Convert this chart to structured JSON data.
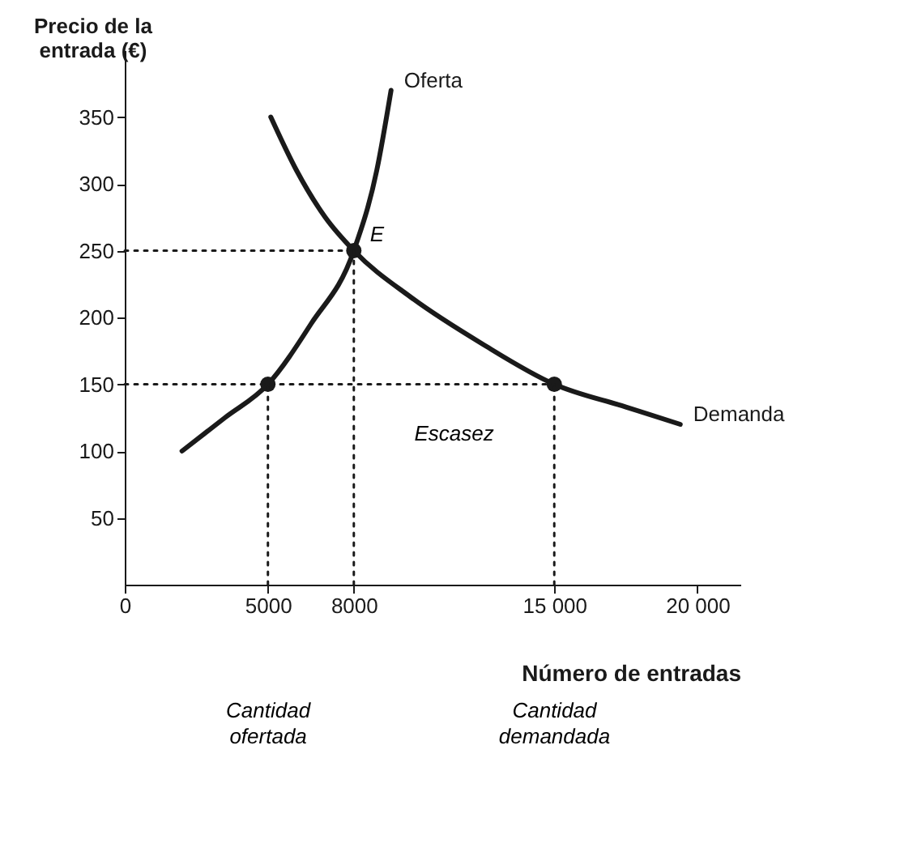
{
  "chart_data": {
    "type": "line",
    "ylabel": "Precio de la entrada (€)",
    "xlabel": "Número de entradas",
    "xlim": [
      0,
      21500
    ],
    "ylim": [
      0,
      400
    ],
    "xticks": [
      0,
      {
        "value": 5000,
        "label": "5000"
      },
      {
        "value": 8000,
        "label": "8000"
      },
      {
        "value": 15000,
        "label": "15 000"
      },
      {
        "value": 20000,
        "label": "20 000"
      }
    ],
    "yticks": [
      50,
      100,
      150,
      200,
      250,
      300,
      350
    ],
    "grid": false,
    "series": [
      {
        "name": "Oferta",
        "color": "#1a1a1a",
        "line_style": "solid",
        "x": [
          2000,
          3500,
          5000,
          6500,
          8000,
          8800,
          9300
        ],
        "values": [
          100,
          125,
          150,
          195,
          250,
          310,
          370
        ]
      },
      {
        "name": "Demanda",
        "color": "#1a1a1a",
        "line_style": "solid",
        "x": [
          5100,
          6000,
          7000,
          8000,
          10000,
          12500,
          15000,
          17500,
          19400
        ],
        "values": [
          350,
          310,
          275,
          250,
          215,
          180,
          150,
          133,
          120
        ]
      },
      {
        "type": "scatter",
        "marker": "circle",
        "color": "#1a1a1a",
        "x": [
          5000,
          8000,
          15000
        ],
        "values": [
          150,
          250,
          150
        ]
      },
      {
        "line_style": "dotted",
        "color": "#1a1a1a",
        "x": [
          0,
          8000
        ],
        "values": [
          250,
          250
        ]
      },
      {
        "line_style": "dotted",
        "color": "#1a1a1a",
        "x": [
          0,
          15000
        ],
        "values": [
          150,
          150
        ]
      },
      {
        "line_style": "dotted",
        "color": "#1a1a1a",
        "x": [
          5000,
          5000
        ],
        "values": [
          0,
          150
        ]
      },
      {
        "line_style": "dotted",
        "color": "#1a1a1a",
        "x": [
          8000,
          8000
        ],
        "values": [
          0,
          250
        ]
      },
      {
        "line_style": "dotted",
        "color": "#1a1a1a",
        "x": [
          15000,
          15000
        ],
        "values": [
          0,
          150
        ]
      }
    ],
    "annotations": [
      {
        "text": "E",
        "x": 8000,
        "y": 250
      },
      "Escasez",
      "Cantidad ofertada",
      "Cantidad demandada"
    ]
  }
}
